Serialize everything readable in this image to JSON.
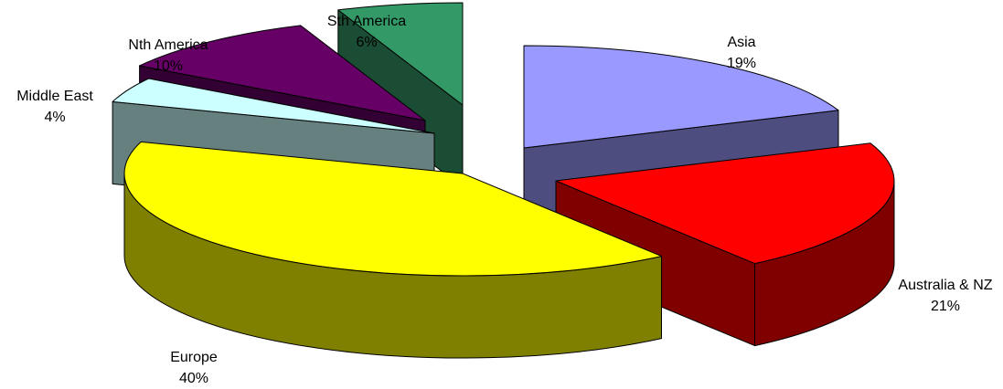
{
  "chart_data": {
    "type": "pie",
    "style": "3d-exploded",
    "title": "",
    "legend": "none",
    "slices": [
      {
        "label": "Asia",
        "percent_label": "19%",
        "value": 19,
        "color": "#9999FF",
        "side_color": "#4D4D80"
      },
      {
        "label": "Australia & NZ",
        "percent_label": "21%",
        "value": 21,
        "color": "#FF0000",
        "side_color": "#800000"
      },
      {
        "label": "Europe",
        "percent_label": "40%",
        "value": 40,
        "color": "#FFFF00",
        "side_color": "#808000"
      },
      {
        "label": "Middle East",
        "percent_label": "4%",
        "value": 4,
        "color": "#CCFFFF",
        "side_color": "#668080"
      },
      {
        "label": "Nth America",
        "percent_label": "10%",
        "value": 10,
        "color": "#660066",
        "side_color": "#330033"
      },
      {
        "label": "Sth America",
        "percent_label": "6%",
        "value": 6,
        "color": "#339966",
        "side_color": "#1A4D33"
      }
    ]
  }
}
